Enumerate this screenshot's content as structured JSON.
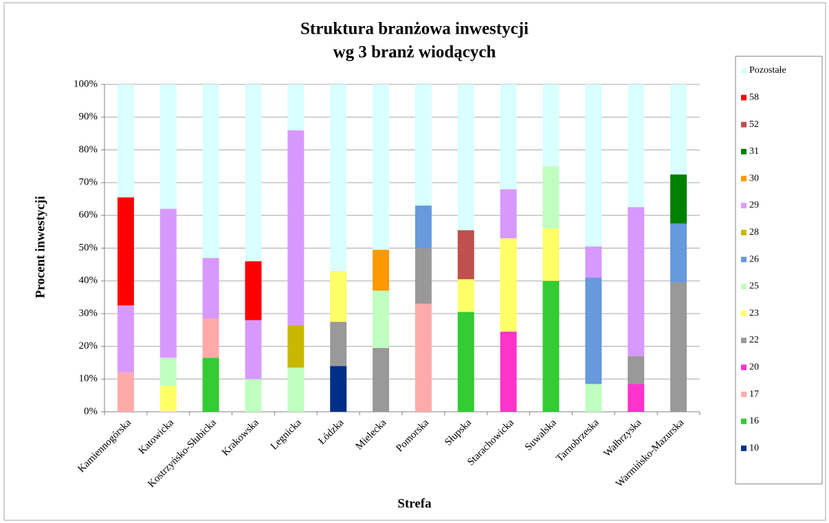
{
  "chart_data": {
    "type": "bar",
    "stacked": true,
    "title": [
      "Struktura branżowa inwestycji",
      "wg 3 branż wiodących"
    ],
    "xlabel": "Strefa",
    "ylabel": "Procent inwestycji",
    "categories": [
      "Kamiennogórska",
      "Katowicka",
      "Kostrzyńsko-Słubicka",
      "Krakowska",
      "Legnicka",
      "Łódzka",
      "Mielecka",
      "Pomorska",
      "Słupska",
      "Starachowicka",
      "Suwalska",
      "Tarnobrzeska",
      "Wałbrzyska",
      "Warmińsko-Mazurska"
    ],
    "series": [
      {
        "name": "10",
        "color": "#002f87",
        "values": [
          null,
          null,
          null,
          null,
          null,
          14,
          null,
          null,
          null,
          null,
          null,
          null,
          null,
          null
        ]
      },
      {
        "name": "16",
        "color": "#33cc33",
        "values": [
          null,
          null,
          16.5,
          null,
          null,
          null,
          null,
          null,
          30.5,
          null,
          40,
          null,
          null,
          null
        ]
      },
      {
        "name": "17",
        "color": "#ffaaaa",
        "values": [
          12,
          null,
          12,
          null,
          null,
          null,
          null,
          33,
          null,
          null,
          null,
          null,
          null,
          null
        ]
      },
      {
        "name": "20",
        "color": "#ff33cc",
        "values": [
          null,
          null,
          null,
          null,
          null,
          null,
          null,
          null,
          null,
          24.5,
          null,
          null,
          8.5,
          null
        ]
      },
      {
        "name": "22",
        "color": "#999999",
        "values": [
          null,
          null,
          null,
          null,
          null,
          13.5,
          19.5,
          17,
          null,
          null,
          null,
          null,
          8.5,
          39.5
        ]
      },
      {
        "name": "23",
        "color": "#ffff66",
        "values": [
          null,
          8,
          null,
          null,
          null,
          15.5,
          null,
          null,
          10,
          28.5,
          16,
          null,
          null,
          null
        ]
      },
      {
        "name": "25",
        "color": "#c0ffc0",
        "values": [
          null,
          8.5,
          null,
          10,
          13.5,
          null,
          17.5,
          null,
          null,
          null,
          19,
          8.5,
          null,
          null
        ]
      },
      {
        "name": "26",
        "color": "#6699dd",
        "values": [
          null,
          null,
          null,
          null,
          null,
          null,
          null,
          13,
          null,
          null,
          null,
          32.5,
          null,
          18
        ]
      },
      {
        "name": "28",
        "color": "#c8b800",
        "values": [
          null,
          null,
          null,
          null,
          13,
          null,
          null,
          null,
          null,
          null,
          null,
          null,
          null,
          null
        ]
      },
      {
        "name": "29",
        "color": "#d899ff",
        "values": [
          20.5,
          45.5,
          18.5,
          18,
          59.5,
          null,
          null,
          null,
          null,
          15,
          null,
          9.5,
          45.5,
          null
        ]
      },
      {
        "name": "30",
        "color": "#ff9900",
        "values": [
          null,
          null,
          null,
          null,
          null,
          null,
          12.5,
          null,
          null,
          null,
          null,
          null,
          null,
          null
        ]
      },
      {
        "name": "31",
        "color": "#008000",
        "values": [
          null,
          null,
          null,
          null,
          null,
          null,
          null,
          null,
          null,
          null,
          null,
          null,
          null,
          15
        ]
      },
      {
        "name": "52",
        "color": "#c0504d",
        "values": [
          null,
          null,
          null,
          null,
          null,
          null,
          null,
          null,
          15,
          null,
          null,
          null,
          null,
          null
        ]
      },
      {
        "name": "58",
        "color": "#ff0000",
        "values": [
          33,
          null,
          null,
          18,
          null,
          null,
          null,
          null,
          null,
          null,
          null,
          null,
          null,
          null
        ]
      },
      {
        "name": "Pozostałe",
        "color": "#d9ffff",
        "values": [
          34.5,
          38,
          53,
          54,
          14,
          57,
          50.5,
          37,
          44.5,
          32,
          25,
          49.5,
          37.5,
          27.5
        ]
      }
    ],
    "ylim": [
      0,
      100
    ],
    "yticks": [
      {
        "value": 0,
        "label": "0%"
      },
      {
        "value": 10,
        "label": "10%"
      },
      {
        "value": 20,
        "label": "20%"
      },
      {
        "value": 30,
        "label": "30%"
      },
      {
        "value": 40,
        "label": "40%"
      },
      {
        "value": 50,
        "label": "50%"
      },
      {
        "value": 60,
        "label": "60%"
      },
      {
        "value": 70,
        "label": "70%"
      },
      {
        "value": 80,
        "label": "80%"
      },
      {
        "value": 90,
        "label": "90%"
      },
      {
        "value": 100,
        "label": "100%"
      }
    ],
    "grid": true,
    "legend": "right"
  }
}
